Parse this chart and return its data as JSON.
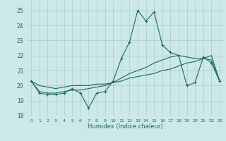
{
  "title": "",
  "xlabel": "Humidex (Indice chaleur)",
  "bg_color": "#cce8e8",
  "grid_color": "#aacccc",
  "line_color": "#1a6b5a",
  "xlim": [
    -0.5,
    23.5
  ],
  "ylim": [
    18,
    25.6
  ],
  "xticks": [
    0,
    1,
    2,
    3,
    4,
    5,
    6,
    7,
    8,
    9,
    10,
    11,
    12,
    13,
    14,
    15,
    16,
    17,
    18,
    19,
    20,
    21,
    22,
    23
  ],
  "yticks": [
    18,
    19,
    20,
    21,
    22,
    23,
    24,
    25
  ],
  "series1": [
    20.3,
    19.5,
    19.4,
    19.4,
    19.5,
    19.8,
    19.5,
    18.5,
    19.5,
    19.6,
    20.3,
    21.8,
    22.9,
    25.0,
    24.3,
    24.9,
    22.7,
    22.2,
    22.0,
    20.0,
    20.2,
    21.9,
    21.5,
    20.3
  ],
  "series2": [
    20.3,
    20.0,
    19.9,
    19.8,
    19.9,
    20.0,
    20.0,
    20.0,
    20.1,
    20.1,
    20.2,
    20.3,
    20.5,
    20.6,
    20.7,
    20.8,
    21.0,
    21.1,
    21.3,
    21.5,
    21.6,
    21.8,
    22.0,
    20.3
  ],
  "series3": [
    20.3,
    19.6,
    19.5,
    19.5,
    19.6,
    19.7,
    19.7,
    19.8,
    19.9,
    20.0,
    20.2,
    20.5,
    20.8,
    21.0,
    21.2,
    21.5,
    21.7,
    21.9,
    22.0,
    21.9,
    21.8,
    21.8,
    21.7,
    20.3
  ]
}
